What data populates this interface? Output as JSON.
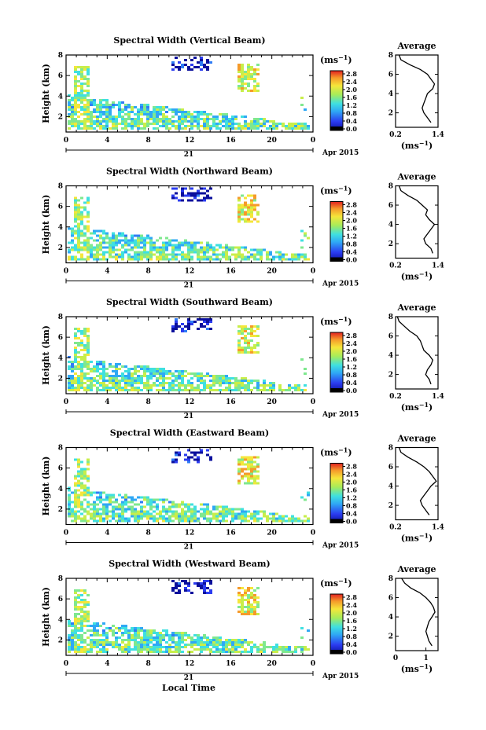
{
  "figure": {
    "xlabel": "Local Time",
    "date_label": "Apr 2015",
    "day_label": "21",
    "ylabel": "Height (km)",
    "unit_label": "(ms",
    "unit_exp": "−1",
    "average_title": "Average",
    "colorbar_ticks": [
      "2.8",
      "2.4",
      "2.0",
      "1.6",
      "1.2",
      "0.8",
      "0.4",
      "0.0"
    ]
  },
  "chart_data": [
    {
      "type": "heatmap",
      "title": "Spectral Width (Vertical Beam)",
      "x_ticks": [
        "0",
        "4",
        "8",
        "12",
        "16",
        "20",
        "0"
      ],
      "y_ticks": [
        "2",
        "4",
        "6",
        "8"
      ],
      "xlim": [
        0,
        24
      ],
      "ylim": [
        0.5,
        8
      ],
      "colorbar_range": [
        0,
        3
      ],
      "unit": "ms−1"
    },
    {
      "type": "line",
      "title": "Average",
      "x_ticks": [
        "0.2",
        "1.4"
      ],
      "xlim": [
        0.2,
        1.4
      ],
      "y_ticks": [
        "2",
        "4",
        "6",
        "8"
      ],
      "ylim": [
        0.5,
        8
      ],
      "y": [
        1,
        1.5,
        2,
        2.5,
        3,
        3.5,
        4,
        4.5,
        5,
        5.5,
        6,
        6.5,
        7,
        7.5,
        8
      ],
      "x": [
        1.2,
        1.1,
        1.0,
        0.95,
        1.0,
        1.05,
        1.1,
        1.25,
        1.3,
        1.2,
        1.1,
        0.9,
        0.6,
        0.35,
        0.3
      ]
    },
    {
      "type": "heatmap",
      "title": "Spectral Width (Northward Beam)",
      "x_ticks": [
        "0",
        "4",
        "8",
        "12",
        "16",
        "20",
        "0"
      ],
      "y_ticks": [
        "2",
        "4",
        "6",
        "8"
      ],
      "xlim": [
        0,
        24
      ],
      "ylim": [
        0.5,
        8
      ],
      "colorbar_range": [
        0,
        3
      ],
      "unit": "ms−1"
    },
    {
      "type": "line",
      "title": "Average",
      "x_ticks": [
        "0.2",
        "1.4"
      ],
      "xlim": [
        0.2,
        1.4
      ],
      "y_ticks": [
        "2",
        "4",
        "6",
        "8"
      ],
      "ylim": [
        0.5,
        8
      ],
      "y": [
        1,
        1.5,
        2,
        2.5,
        3,
        3.5,
        4,
        4.5,
        5,
        5.5,
        6,
        6.5,
        7,
        7.5,
        8
      ],
      "x": [
        1.25,
        1.2,
        1.05,
        1.0,
        1.1,
        1.2,
        1.3,
        1.15,
        1.05,
        1.1,
        0.95,
        0.8,
        0.55,
        0.35,
        0.3
      ]
    },
    {
      "type": "heatmap",
      "title": "Spectral Width (Southward Beam)",
      "x_ticks": [
        "0",
        "4",
        "8",
        "12",
        "16",
        "20",
        "0"
      ],
      "y_ticks": [
        "2",
        "4",
        "6",
        "8"
      ],
      "xlim": [
        0,
        24
      ],
      "ylim": [
        0.5,
        8
      ],
      "colorbar_range": [
        0,
        3
      ],
      "unit": "ms−1"
    },
    {
      "type": "line",
      "title": "Average",
      "x_ticks": [
        "0.2",
        "1.4"
      ],
      "xlim": [
        0.2,
        1.4
      ],
      "y_ticks": [
        "2",
        "4",
        "6",
        "8"
      ],
      "ylim": [
        0.5,
        8
      ],
      "y": [
        1,
        1.5,
        2,
        2.5,
        3,
        3.5,
        4,
        4.5,
        5,
        5.5,
        6,
        6.5,
        7,
        7.5,
        8
      ],
      "x": [
        1.2,
        1.15,
        1.05,
        1.1,
        1.2,
        1.25,
        1.15,
        1.0,
        0.95,
        0.9,
        0.8,
        0.6,
        0.45,
        0.3,
        0.25
      ]
    },
    {
      "type": "heatmap",
      "title": "Spectral Width (Eastward Beam)",
      "x_ticks": [
        "0",
        "4",
        "8",
        "12",
        "16",
        "20",
        "0"
      ],
      "y_ticks": [
        "2",
        "4",
        "6",
        "8"
      ],
      "xlim": [
        0,
        24
      ],
      "ylim": [
        0.5,
        8
      ],
      "colorbar_range": [
        0,
        3
      ],
      "unit": "ms−1"
    },
    {
      "type": "line",
      "title": "Average",
      "x_ticks": [
        "0.2",
        "1.4"
      ],
      "xlim": [
        0.2,
        1.4
      ],
      "y_ticks": [
        "2",
        "4",
        "6",
        "8"
      ],
      "ylim": [
        0.5,
        8
      ],
      "y": [
        1,
        1.5,
        2,
        2.5,
        3,
        3.5,
        4,
        4.5,
        5,
        5.5,
        6,
        6.5,
        7,
        7.5,
        8
      ],
      "x": [
        1.15,
        1.05,
        0.95,
        0.9,
        1.0,
        1.1,
        1.2,
        1.35,
        1.25,
        1.15,
        1.0,
        0.8,
        0.55,
        0.35,
        0.3
      ]
    },
    {
      "type": "heatmap",
      "title": "Spectral Width (Westward Beam)",
      "x_ticks": [
        "0",
        "4",
        "8",
        "12",
        "16",
        "20",
        "0"
      ],
      "y_ticks": [
        "2",
        "4",
        "6",
        "8"
      ],
      "xlim": [
        0,
        24
      ],
      "ylim": [
        0.5,
        8
      ],
      "colorbar_range": [
        0,
        3
      ],
      "unit": "ms−1"
    },
    {
      "type": "line",
      "title": "Average",
      "x_ticks": [
        "0",
        "1"
      ],
      "xlim": [
        0,
        1.4
      ],
      "y_ticks": [
        "2",
        "4",
        "6",
        "8"
      ],
      "ylim": [
        0.5,
        8
      ],
      "y": [
        1,
        1.5,
        2,
        2.5,
        3,
        3.5,
        4,
        4.5,
        5,
        5.5,
        6,
        6.5,
        7,
        7.5,
        8
      ],
      "x": [
        1.2,
        1.1,
        1.05,
        1.0,
        1.05,
        1.1,
        1.2,
        1.3,
        1.25,
        1.15,
        1.0,
        0.8,
        0.5,
        0.3,
        0.2
      ]
    }
  ]
}
